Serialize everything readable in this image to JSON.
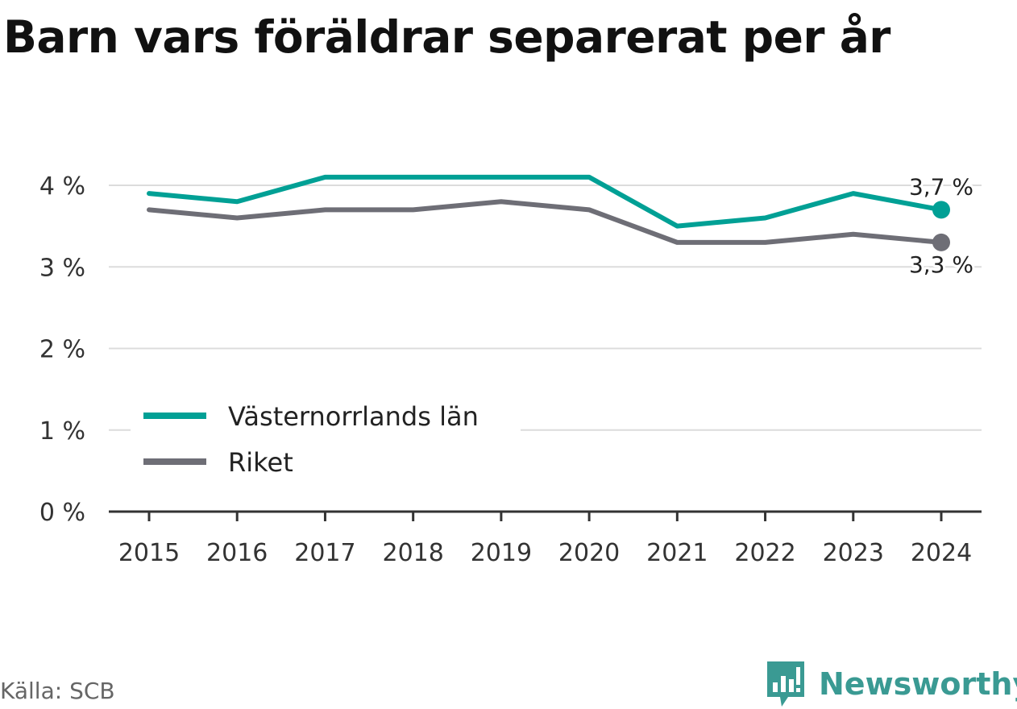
{
  "chart_data": {
    "type": "line",
    "title": "Barn vars föräldrar separerat per år",
    "x": [
      "2015",
      "2016",
      "2017",
      "2018",
      "2019",
      "2020",
      "2021",
      "2022",
      "2023",
      "2024"
    ],
    "series": [
      {
        "name": "Västernorrlands län",
        "color": "#00a095",
        "values": [
          3.9,
          3.8,
          4.1,
          4.1,
          4.1,
          4.1,
          3.5,
          3.6,
          3.9,
          3.7
        ],
        "end_label": "3,7 %"
      },
      {
        "name": "Riket",
        "color": "#6e6e76",
        "values": [
          3.7,
          3.6,
          3.7,
          3.7,
          3.8,
          3.7,
          3.3,
          3.3,
          3.4,
          3.3
        ],
        "end_label": "3,3 %"
      }
    ],
    "y_ticks": [
      {
        "value": 0,
        "label": "0 %"
      },
      {
        "value": 1,
        "label": "1 %"
      },
      {
        "value": 2,
        "label": "2 %"
      },
      {
        "value": 3,
        "label": "3 %"
      },
      {
        "value": 4,
        "label": "4 %"
      }
    ],
    "ylim": [
      0,
      4
    ],
    "grid": true,
    "legend": "inside bottom-left"
  },
  "footer": {
    "source": "Källa: SCB",
    "brand": "Newsworthy",
    "brand_icon": "bar-chart-speech-bubble-icon"
  }
}
